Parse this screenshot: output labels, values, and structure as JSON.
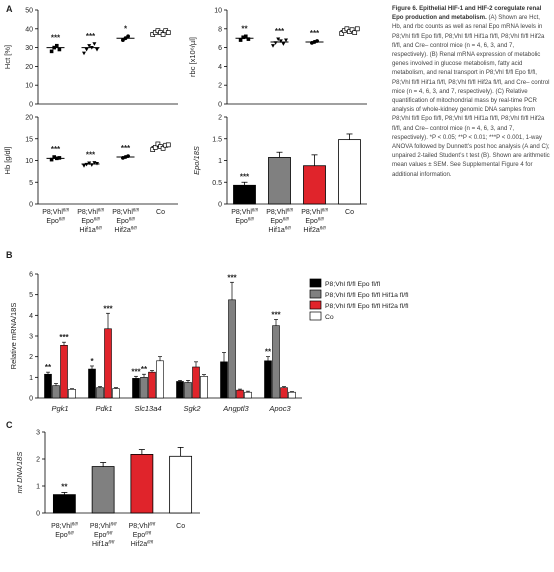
{
  "caption": {
    "title": "Figure 6. Epithelial HIF-1 and HIF-2 coregulate renal Epo production and metabolism.",
    "body": " (A) Shown are Hct, Hb, and rbc counts as well as renal Epo mRNA levels in P8;Vhl fl/fl Epo fl/fl, P8;Vhl fl/fl Hif1a fl/fl, P8;Vhl fl/fl Hif2a fl/fl, and Cre– control mice (n = 4, 6, 3, and 7, respectively). (B) Renal mRNA expression of metabolic genes involved in glucose metabolism, fatty acid metabolism, and renal transport in P8;Vhl fl/fl Epo fl/fl, P8;Vhl fl/fl Hif1a fl/fl, P8;Vhl fl/fl Hif2a fl/fl, and Cre– control mice (n = 4, 6, 3, and 7, respectively). (C) Relative quantification of mitochondrial mass by real-time PCR analysis of whole-kidney genomic DNA samples from P8;Vhl fl/fl Epo fl/fl, P8;Vhl fl/fl Hif1a fl/fl, P8;Vhl fl/fl Hif2a fl/fl, and Cre– control mice (n = 4, 6, 3, and 7, respectively). *P < 0.05; **P < 0.01; ***P < 0.001, 1-way ANOVA followed by Dunnett’s post hoc analysis (A and C); unpaired 2-tailed Student’s t test (B). Shown are arithmetic mean values ± SEM. See Supplemental Figure 4 for additional information."
  },
  "panel_letters": [
    "A",
    "B",
    "C"
  ],
  "colors": {
    "epo": "#000000",
    "hif1a": "#808080",
    "hif2a": "#e0242b",
    "co": "#ffffff"
  },
  "groups_A": [
    {
      "l1": "P8;Vhl",
      "s1": "fl/fl",
      "l2": "Epo",
      "s2": "fl/fl"
    },
    {
      "l1": "P8;Vhl",
      "s1": "fl/fl",
      "l2": "Epo",
      "s2": "fl/fl",
      "l3": "Hif1a",
      "s3": "fl/fl"
    },
    {
      "l1": "P8;Vhl",
      "s1": "fl/fl",
      "l2": "Epo",
      "s2": "fl/fl",
      "l3": "Hif2a",
      "s3": "fl/fl"
    },
    {
      "l1": "Co"
    }
  ],
  "legend_B": [
    {
      "text": "P8;Vhl fl/fl Epo fl/fl",
      "color": "#000000"
    },
    {
      "text": "P8;Vhl fl/fl Epo fl/fl Hif1a fl/fl",
      "color": "#808080"
    },
    {
      "text": "P8;Vhl fl/fl Epo fl/fl Hif2a fl/fl",
      "color": "#e0242b"
    },
    {
      "text": "Co",
      "color": "#ffffff"
    }
  ],
  "chart_data": [
    {
      "panel": "A",
      "type": "scatter",
      "ylabel": "Hct [%]",
      "ylim": [
        0,
        50
      ],
      "yticks": [
        0,
        10,
        20,
        30,
        40,
        50
      ],
      "categories": [
        "Epo",
        "Hif1a",
        "Hif2a",
        "Co"
      ],
      "means": [
        30,
        30,
        35,
        38
      ],
      "points": [
        [
          28,
          30,
          31,
          29
        ],
        [
          27,
          29,
          31,
          30,
          32,
          29
        ],
        [
          34,
          35,
          36
        ],
        [
          37,
          38,
          39,
          38,
          37,
          39,
          38
        ]
      ],
      "significance": [
        "***",
        "***",
        "*",
        ""
      ]
    },
    {
      "panel": "A",
      "type": "scatter",
      "ylabel": "rbc [x10⁶/µl]",
      "ylim": [
        0,
        10
      ],
      "yticks": [
        0,
        2,
        4,
        6,
        8,
        10
      ],
      "categories": [
        "Epo",
        "Hif1a",
        "Hif2a",
        "Co"
      ],
      "means": [
        7.0,
        6.6,
        6.6,
        7.8
      ],
      "points": [
        [
          6.8,
          7.1,
          7.2,
          6.9
        ],
        [
          6.2,
          6.5,
          6.9,
          6.7,
          6.4,
          6.8
        ],
        [
          6.5,
          6.6,
          6.7
        ],
        [
          7.5,
          7.8,
          8.0,
          7.7,
          7.9,
          7.6,
          8.0
        ]
      ],
      "significance": [
        "**",
        "***",
        "***",
        ""
      ]
    },
    {
      "panel": "A",
      "type": "scatter",
      "ylabel": "Hb [g/dl]",
      "ylim": [
        0,
        20
      ],
      "yticks": [
        0,
        5,
        10,
        15,
        20
      ],
      "categories": [
        "Epo",
        "Hif1a",
        "Hif2a",
        "Co"
      ],
      "means": [
        10.5,
        9.2,
        10.8,
        13.2
      ],
      "points": [
        [
          10.2,
          10.8,
          10.5,
          10.6
        ],
        [
          8.8,
          9.1,
          9.4,
          9.0,
          9.5,
          9.3
        ],
        [
          10.6,
          10.8,
          11.0
        ],
        [
          12.5,
          13.0,
          13.8,
          13.2,
          12.8,
          13.5,
          13.6
        ]
      ],
      "significance": [
        "***",
        "***",
        "***",
        ""
      ]
    },
    {
      "panel": "A",
      "type": "bar",
      "ylabel": "Epo/18S",
      "ylim": [
        0,
        2.0
      ],
      "yticks": [
        0,
        0.5,
        1.0,
        1.5,
        2.0
      ],
      "categories": [
        "Epo",
        "Hif1a",
        "Hif2a",
        "Co"
      ],
      "values": [
        0.43,
        1.07,
        0.88,
        1.48
      ],
      "errors": [
        0.07,
        0.12,
        0.25,
        0.13
      ],
      "significance": [
        "***",
        "",
        "",
        ""
      ]
    },
    {
      "panel": "B",
      "type": "bar",
      "ylabel": "Relative mRNA/18S",
      "ylim": [
        0,
        6
      ],
      "yticks": [
        0,
        1,
        2,
        3,
        4,
        5,
        6
      ],
      "categories": [
        "Pgk1",
        "Pdk1",
        "Slc13a4",
        "Sgk2",
        "Angptl3",
        "Apoc3"
      ],
      "series": [
        {
          "name": "P8;Vhl fl/fl Epo fl/fl",
          "values": [
            1.15,
            1.4,
            0.95,
            0.8,
            1.75,
            1.8
          ],
          "errors": [
            0.1,
            0.15,
            0.1,
            0.05,
            0.45,
            0.2
          ],
          "significance": [
            "**",
            "*",
            "***",
            "",
            "",
            "**"
          ]
        },
        {
          "name": "P8;Vhl fl/fl Epo fl/fl Hif1a fl/fl",
          "values": [
            0.6,
            0.5,
            1.0,
            0.75,
            4.75,
            3.5
          ],
          "errors": [
            0.1,
            0.05,
            0.15,
            0.1,
            0.85,
            0.3
          ],
          "significance": [
            "",
            "",
            "**",
            "",
            "***",
            "***"
          ]
        },
        {
          "name": "P8;Vhl fl/fl Epo fl/fl Hif2a fl/fl",
          "values": [
            2.55,
            3.35,
            1.25,
            1.5,
            0.38,
            0.5
          ],
          "errors": [
            0.15,
            0.75,
            0.08,
            0.25,
            0.05,
            0.05
          ],
          "significance": [
            "***",
            "***",
            "",
            "",
            "",
            ""
          ]
        },
        {
          "name": "Co",
          "values": [
            0.42,
            0.45,
            1.8,
            1.05,
            0.28,
            0.28
          ],
          "errors": [
            0.03,
            0.05,
            0.2,
            0.08,
            0.05,
            0.03
          ],
          "significance": [
            "",
            "",
            "",
            "",
            "",
            ""
          ]
        }
      ]
    },
    {
      "panel": "C",
      "type": "bar",
      "ylabel": "mt DNA/18S",
      "ylim": [
        0,
        3
      ],
      "yticks": [
        0,
        1,
        2,
        3
      ],
      "categories": [
        "Epo",
        "Hif1a",
        "Hif2a",
        "Co"
      ],
      "values": [
        0.68,
        1.72,
        2.17,
        2.1
      ],
      "errors": [
        0.08,
        0.15,
        0.18,
        0.33
      ],
      "significance": [
        "**",
        "",
        "",
        ""
      ]
    }
  ]
}
